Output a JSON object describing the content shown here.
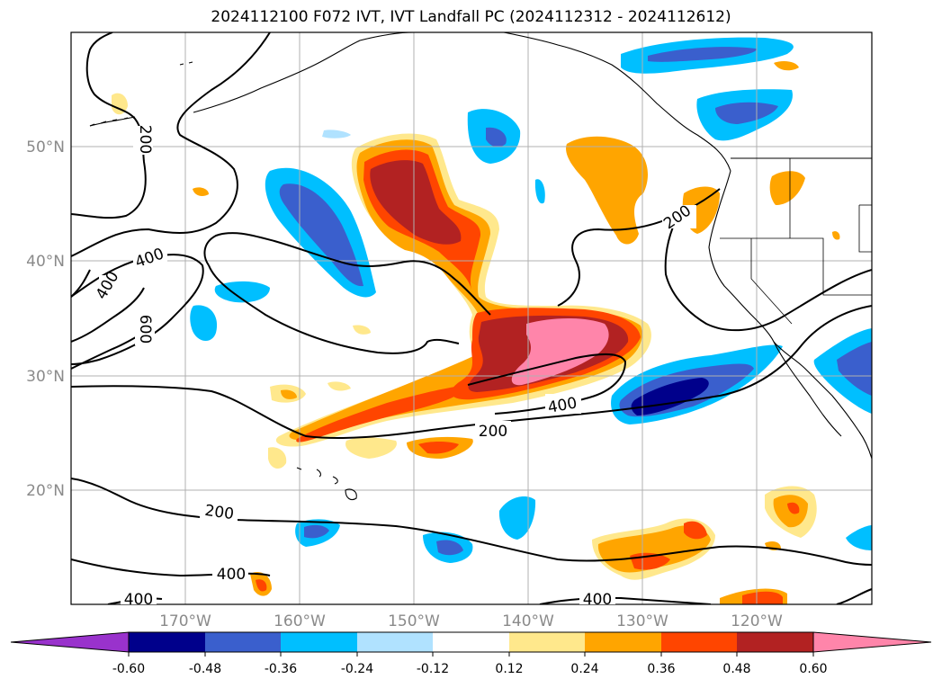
{
  "title": "2024112100 F072 IVT, IVT Landfall PC (2024112312 - 2024112612)",
  "lat_labels": [
    "50°N",
    "40°N",
    "30°N",
    "20°N"
  ],
  "lon_labels": [
    "170°W",
    "160°W",
    "150°W",
    "140°W",
    "130°W",
    "120°W"
  ],
  "contour_labels": [
    "200",
    "400",
    "400",
    "600",
    "200",
    "400",
    "200",
    "200",
    "400",
    "400",
    "400"
  ],
  "colorbar": {
    "ticks": [
      "-0.60",
      "-0.48",
      "-0.36",
      "-0.24",
      "-0.12",
      "0.12",
      "0.24",
      "0.36",
      "0.48",
      "0.60"
    ],
    "colors": [
      "#9932CC",
      "#00008B",
      "#3A5FCD",
      "#00BFFF",
      "#B0E2FF",
      "#FFFFFF",
      "#FFE88C",
      "#FFA500",
      "#FF4500",
      "#B22222",
      "#FF85AA"
    ]
  },
  "colors": {
    "land_outline": "#000000",
    "grid": "#b0b0b0",
    "contour": "#000000"
  }
}
